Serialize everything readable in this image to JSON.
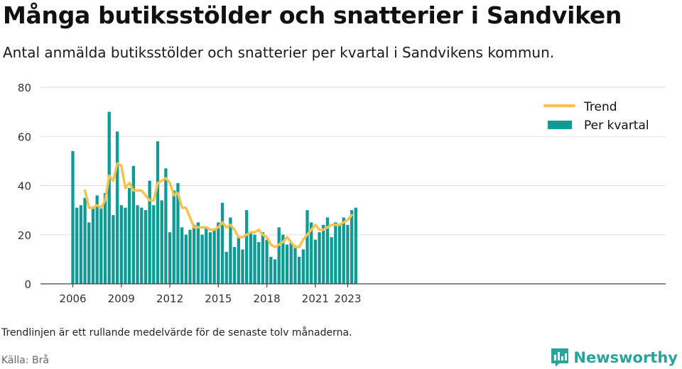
{
  "title": "Många butiksstölder och snatterier i Sandviken",
  "subtitle": "Antal anmälda butiksstölder och snatterier per kvartal i Sandvikens kommun.",
  "note": "Trendlinjen är ett rullande medelvärde för de senaste tolv månaderna.",
  "source": "Källa: Brå",
  "brand": "Newsworthy",
  "colors": {
    "bar": "#0e9b95",
    "trend": "#f7c24f",
    "grid": "#dddddd",
    "axis": "#444444",
    "brand": "#2aa39a"
  },
  "chart_data": {
    "type": "bar",
    "ylim": [
      0,
      80
    ],
    "yticks": [
      0,
      20,
      40,
      60,
      80
    ],
    "xticks": [
      "2006",
      "2009",
      "2012",
      "2015",
      "2018",
      "2021",
      "2023"
    ],
    "xtick_quarter_index": [
      0,
      12,
      24,
      36,
      48,
      60,
      68
    ],
    "grid": true,
    "legend_position": "top-right",
    "series": [
      {
        "name": "Per kvartal",
        "kind": "bar",
        "values": [
          54,
          31,
          32,
          35,
          25,
          31,
          36,
          31,
          37,
          70,
          28,
          62,
          32,
          31,
          39,
          48,
          32,
          31,
          30,
          42,
          32,
          58,
          34,
          47,
          21,
          38,
          41,
          23,
          20,
          22,
          24,
          25,
          20,
          23,
          21,
          22,
          25,
          33,
          13,
          27,
          15,
          19,
          14,
          30,
          21,
          20,
          17,
          21,
          18,
          11,
          10,
          23,
          20,
          16,
          17,
          15,
          11,
          14,
          30,
          25,
          18,
          21,
          24,
          27,
          19,
          25,
          24,
          27,
          24,
          30,
          31
        ]
      },
      {
        "name": "Trend",
        "kind": "line",
        "start_index": 3,
        "values": [
          38,
          31,
          31,
          32,
          31,
          34,
          44,
          42,
          49,
          48,
          39,
          41,
          38,
          38,
          38,
          36,
          34,
          34,
          41,
          42,
          43,
          41,
          36,
          37,
          31,
          31,
          27,
          23,
          23,
          23,
          23,
          22,
          22,
          23,
          25,
          23,
          24,
          22,
          19,
          19,
          20,
          21,
          21,
          22,
          20,
          19,
          16,
          15,
          16,
          17,
          19,
          17,
          15,
          15,
          18,
          20,
          22,
          24,
          22,
          22,
          23,
          24,
          24,
          24,
          25,
          26,
          28
        ]
      }
    ]
  }
}
